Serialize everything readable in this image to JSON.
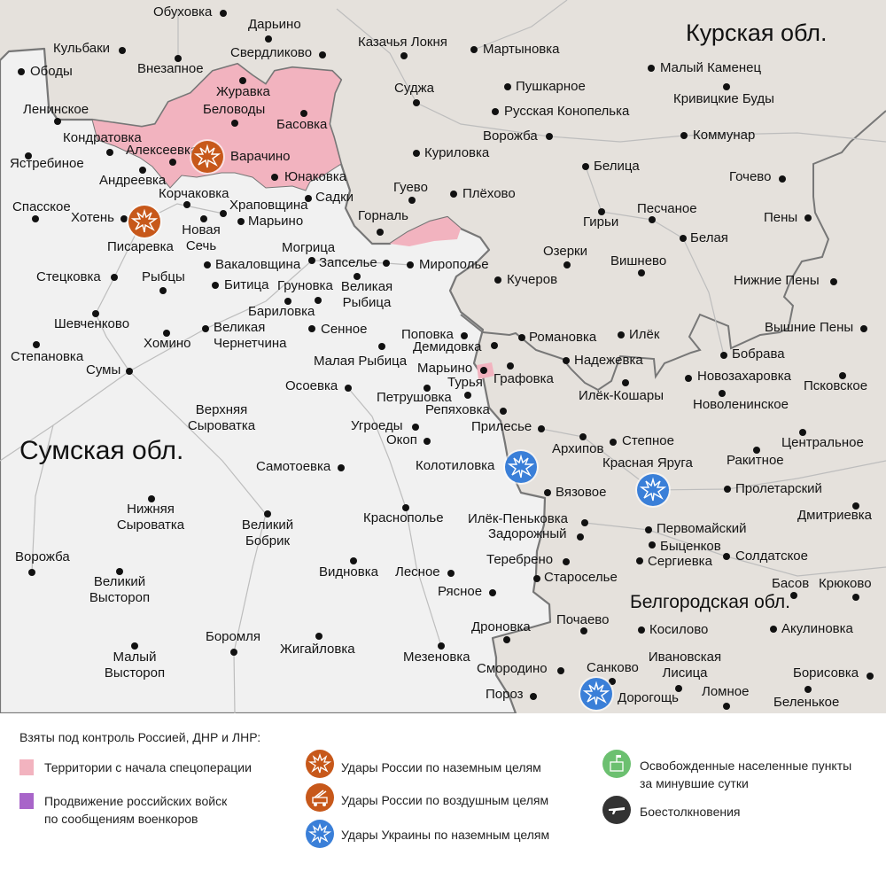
{
  "map": {
    "regions": [
      "Курская обл.",
      "Сумская обл.",
      "Белгородская обл."
    ],
    "colors": {
      "russia_land": "#e5e1dc",
      "ukraine_land": "#f1f1f1",
      "controlled_territory": "#f2b3bf",
      "border": "#777777",
      "russia_strike": "#c7581a",
      "ukraine_strike": "#3a7fd8"
    },
    "places": [
      "Обуховка",
      "Дарьино",
      "Кульбаки",
      "Внезапное",
      "Свердликово",
      "Казачья Локня",
      "Мартыновка",
      "Ободы",
      "Малый Каменец",
      "Журавка",
      "Беловоды",
      "Суджа",
      "Пушкарное",
      "Кривицкие Буды",
      "Ленинское",
      "Басовка",
      "Русская Конопелька",
      "Кондратовка",
      "Ворожба",
      "Коммунар",
      "Алексеевка",
      "Варачино",
      "Куриловка",
      "Ястребиное",
      "Белица",
      "Гочево",
      "Юнаковка",
      "Андреевка",
      "Корчаковка",
      "Гуево",
      "Плёхово",
      "Садки",
      "Храповщина",
      "Спасское",
      "Песчаное",
      "Горналь",
      "Хотень",
      "Пены",
      "Марьино",
      "Гирьи",
      "Новая\nСечь",
      "Белая",
      "Писаревка",
      "Могрица",
      "Озерки",
      "Вишнево",
      "Вакаловщина",
      "Запселье",
      "Мирополье",
      "Стецковка",
      "Рыбцы",
      "Кучеров",
      "Нижние Пены",
      "Битица",
      "Груновка",
      "Великая\nРыбица",
      "Бариловка",
      "Шевченково",
      "Великая\nЧернетчина",
      "Сенное",
      "Вышние Пены",
      "Поповка",
      "Романовка",
      "Илёк",
      "Хомино",
      "Демидовка",
      "Степановка",
      "Бобрава",
      "Малая Рыбица",
      "Надежевка",
      "Сумы",
      "Марьино",
      "Графовка",
      "Новозахаровка",
      "Турья",
      "Псковское",
      "Осоевка",
      "Петрушовка",
      "Илёк-Кошары",
      "Новоленинское",
      "Верхняя\nСыроватка",
      "Репяховка",
      "Угроеды",
      "Прилесье",
      "Окоп",
      "Степное",
      "Центральное",
      "Архипов",
      "Ракитное",
      "Красная Яруга",
      "Самотоевка",
      "Колотиловка",
      "Пролетарский",
      "Вязовое",
      "Нижняя\nСыроватка",
      "Дмитриевка",
      "Краснополье",
      "Илёк-Пеньковка",
      "Великий\nБобрик",
      "Первомайский",
      "Задорожный",
      "Быценков",
      "Ворожба",
      "Солдатское",
      "Теребрено",
      "Сергиевка",
      "Видновка",
      "Лесное",
      "Староселье",
      "Великий\nВыстороп",
      "Басов",
      "Крюково",
      "Рясное",
      "Почаево",
      "Дроновка",
      "Косилово",
      "Акулиновка",
      "Боромля",
      "Жигайловка",
      "Малый\nВыстороп",
      "Мезеновка",
      "Ивановская\nЛисица",
      "Санково",
      "Смородино",
      "Борисовка",
      "Ломное",
      "Пороз",
      "Дорогощь",
      "Беленькое"
    ],
    "markers": [
      {
        "type": "russia-ground-strike",
        "near": "Варачино"
      },
      {
        "type": "russia-ground-strike",
        "near": "Писаревка"
      },
      {
        "type": "ukraine-ground-strike",
        "near": "Колотиловка"
      },
      {
        "type": "ukraine-ground-strike",
        "near": "Красная Яруга"
      },
      {
        "type": "ukraine-ground-strike",
        "near": "Дорогощь"
      }
    ]
  },
  "legend": {
    "title": "Взяты под контроль Россией, ДНР и ЛНР:",
    "items": [
      {
        "label": "Территории с начала спецоперации",
        "color": "#f2b3bf",
        "icon": "pink-swatch"
      },
      {
        "label": "Продвижение российских войск\nпо сообщениям военкоров",
        "color": "#a865c9",
        "icon": "purple-swatch"
      },
      {
        "label": "Удары России по наземным целям",
        "color": "#c7581a",
        "icon": "explosion-icon"
      },
      {
        "label": "Удары России по воздушным целям",
        "color": "#c7581a",
        "icon": "missile-launcher-icon"
      },
      {
        "label": "Удары Украины по наземным целям",
        "color": "#3a7fd8",
        "icon": "explosion-icon"
      },
      {
        "label": "Освобожденные населенные пункты\nза минувшие сутки",
        "color": "#6cc070",
        "icon": "building-flag-icon"
      },
      {
        "label": "Боестолкновения",
        "color": "#333333",
        "icon": "rifle-icon"
      }
    ]
  }
}
